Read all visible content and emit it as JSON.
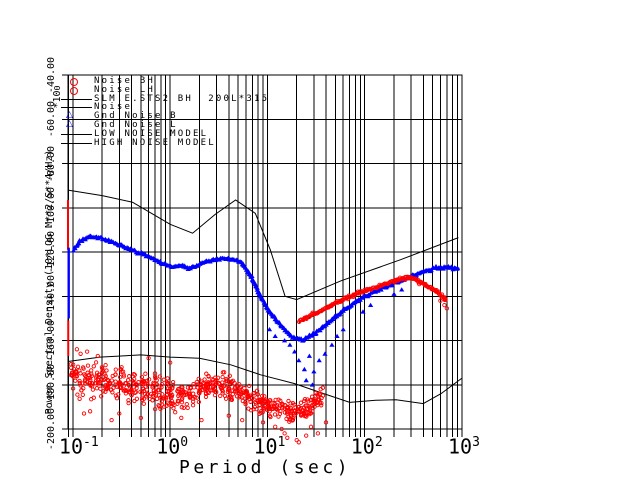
{
  "figure": {
    "background": "#ffffff",
    "foreground": "#000000",
    "red": "#ff0000",
    "blue": "#0000ff"
  },
  "axes": {
    "x": {
      "label": "Period (sec)",
      "scale": "log",
      "tick_base": "10",
      "ticks": [
        {
          "exp": "-1",
          "period": 0.1
        },
        {
          "exp": "0",
          "period": 1
        },
        {
          "exp": "1",
          "period": 10
        },
        {
          "exp": "2",
          "period": 100
        },
        {
          "exp": "3",
          "period": 1000
        }
      ]
    },
    "y": {
      "label": "Power Spectral Density (10*LOG M**2/S**4/Hz)",
      "scale_factor": "*10",
      "scale_exp": "0",
      "ticks": [
        {
          "label": "-40.00",
          "value": -40
        },
        {
          "label": "-60.00",
          "value": -60
        },
        {
          "label": "-80.00",
          "value": -80
        },
        {
          "label": "-100.00",
          "value": -100
        },
        {
          "label": "-120.00",
          "value": -120
        },
        {
          "label": "-140.00",
          "value": -140
        },
        {
          "label": "-160.00",
          "value": -160
        },
        {
          "label": "-180.00",
          "value": -180
        },
        {
          "label": "-200.00",
          "value": -200
        }
      ]
    }
  },
  "legend": {
    "items": [
      {
        "label": "Noise BH",
        "marker": "circle",
        "color": "#ff0000"
      },
      {
        "label": "Noise LH",
        "marker": "circle",
        "color": "#ff0000"
      },
      {
        "label": "SLM.E.STS2 BH  200L*315",
        "marker": "line",
        "color": "#000000"
      },
      {
        "label": "Noise",
        "marker": "line",
        "color": "#000000"
      },
      {
        "label": "Gnd Noise B",
        "marker": "triangle",
        "color": "#0000ff"
      },
      {
        "label": "Gnd Noise L",
        "marker": "triangle",
        "color": "#0000ff"
      },
      {
        "label": "LOW NOISE MODEL",
        "marker": "line",
        "color": "#000000"
      },
      {
        "label": "HIGH NOISE MODEL",
        "marker": "line",
        "color": "#000000"
      }
    ]
  },
  "chart_data": {
    "type": "line+scatter",
    "title": "",
    "xlabel": "Period (sec)",
    "ylabel": "Power Spectral Density (10*LOG M**2/S**4/Hz)",
    "xlim": [
      0.089,
      1000
    ],
    "ylim": [
      -200,
      -40
    ],
    "y_tick_step": 20,
    "grid": "vertical lines at every minor log-period tick, horizontal lines at 20 dB ticks",
    "legend_position": "top-left-inside",
    "seed": 13,
    "series": [
      {
        "name": "Noise BH",
        "color": "#ff0000",
        "marker": "circle",
        "render": "cloud",
        "centerline": [
          [
            0.095,
            -177,
            9
          ],
          [
            0.105,
            -177,
            9
          ],
          [
            0.13,
            -178,
            10
          ],
          [
            0.16,
            -177,
            11
          ],
          [
            0.2,
            -179,
            11
          ],
          [
            0.25,
            -179,
            11
          ],
          [
            0.32,
            -180,
            11
          ],
          [
            0.45,
            -181,
            10
          ],
          [
            0.62,
            -182,
            10
          ],
          [
            0.85,
            -184,
            9
          ],
          [
            1.2,
            -186,
            8
          ],
          [
            1.7,
            -184,
            9
          ],
          [
            2.4,
            -181,
            9
          ],
          [
            3.4,
            -180,
            9
          ],
          [
            4.8,
            -183,
            8
          ],
          [
            6.8,
            -186,
            8
          ],
          [
            9.5,
            -189,
            7
          ],
          [
            13,
            -191,
            7
          ],
          [
            18,
            -193,
            6
          ],
          [
            24,
            -192,
            7
          ],
          [
            30,
            -188,
            6
          ],
          [
            38,
            -184,
            5
          ]
        ],
        "outliers": [
          [
            0.25,
            -196
          ],
          [
            0.3,
            -193
          ],
          [
            0.5,
            -195
          ],
          [
            1.3,
            -195
          ],
          [
            2.1,
            -196
          ],
          [
            4,
            -194
          ],
          [
            5.5,
            -196
          ],
          [
            9,
            -197
          ],
          [
            12,
            -199
          ],
          [
            14,
            -200
          ],
          [
            15,
            -202
          ],
          [
            16,
            -204
          ],
          [
            20,
            -205
          ],
          [
            21,
            -206
          ],
          [
            25,
            -203
          ],
          [
            28,
            -199
          ],
          [
            33,
            -202
          ],
          [
            40,
            -197
          ],
          [
            0.13,
            -193
          ],
          [
            0.15,
            -192
          ],
          [
            0.7,
            -191
          ],
          [
            0.11,
            -164
          ],
          [
            0.12,
            -166
          ],
          [
            0.14,
            -165
          ],
          [
            0.18,
            -167
          ],
          [
            0.6,
            -168
          ],
          [
            1.0,
            -170
          ]
        ],
        "spikes": [
          {
            "p": 0.089,
            "from": -96.5,
            "to": -119
          },
          {
            "p": 0.0895,
            "from": -151,
            "to": -167
          }
        ]
      },
      {
        "name": "Noise LH",
        "color": "#ff0000",
        "marker": "circle",
        "render": "marker-line",
        "points": [
          [
            21,
            -151.5
          ],
          [
            25,
            -149.5
          ],
          [
            31,
            -148
          ],
          [
            38,
            -146
          ],
          [
            44,
            -144.5
          ],
          [
            53,
            -142.5
          ],
          [
            62,
            -141
          ],
          [
            75,
            -139.5
          ],
          [
            85,
            -138.5
          ],
          [
            100,
            -137.5
          ],
          [
            113,
            -136.7
          ],
          [
            128,
            -136
          ],
          [
            143,
            -135.4
          ],
          [
            160,
            -134.5
          ],
          [
            185,
            -133.6
          ],
          [
            210,
            -132.8
          ],
          [
            234,
            -132.2
          ],
          [
            260,
            -131.6
          ],
          [
            283,
            -131.3
          ],
          [
            310,
            -131.8
          ],
          [
            342,
            -132.7
          ],
          [
            380,
            -133.8
          ],
          [
            413,
            -134.5
          ],
          [
            455,
            -135.8
          ],
          [
            500,
            -136.7
          ],
          [
            550,
            -138
          ],
          [
            605,
            -139.4
          ],
          [
            650,
            -140.7
          ],
          [
            700,
            -142.1
          ]
        ],
        "extra": [
          [
            600,
            -142
          ],
          [
            660,
            -144
          ],
          [
            700,
            -145.5
          ]
        ]
      },
      {
        "name": "SLM.E.STS2 BH  200L*315",
        "color": "#000000",
        "marker": "line",
        "render": "line",
        "points": [
          [
            21,
            -152
          ],
          [
            31,
            -148.5
          ],
          [
            44,
            -145
          ],
          [
            62,
            -141.5
          ],
          [
            85,
            -139
          ],
          [
            113,
            -137.2
          ],
          [
            143,
            -135.9
          ],
          [
            165,
            -135
          ]
        ]
      },
      {
        "name": "Noise",
        "color": "#000000",
        "marker": "line",
        "render": "none",
        "points": []
      },
      {
        "name": "Gnd Noise B",
        "color": "#0000ff",
        "marker": "triangle",
        "render": "marker-line",
        "points": [
          [
            0.102,
            -119
          ],
          [
            0.118,
            -115
          ],
          [
            0.15,
            -113.2
          ],
          [
            0.19,
            -113.7
          ],
          [
            0.24,
            -115
          ],
          [
            0.32,
            -117.3
          ],
          [
            0.435,
            -119.6
          ],
          [
            0.62,
            -122.3
          ],
          [
            0.83,
            -125
          ],
          [
            1.05,
            -126.8
          ],
          [
            1.27,
            -125.9
          ],
          [
            1.53,
            -127.2
          ],
          [
            1.85,
            -126.3
          ],
          [
            2.3,
            -124.5
          ],
          [
            2.9,
            -123.2
          ],
          [
            3.95,
            -122.7
          ],
          [
            5.3,
            -124.5
          ],
          [
            6.7,
            -130.4
          ],
          [
            8.1,
            -138.1
          ]
        ],
        "spike": {
          "p": 0.0905,
          "from": -118,
          "to": -150
        }
      },
      {
        "name": "Gnd Noise L",
        "color": "#0000ff",
        "marker": "triangle",
        "render": "marker-line",
        "points": [
          [
            8.1,
            -138.1
          ],
          [
            10.2,
            -146.2
          ],
          [
            13.6,
            -153
          ],
          [
            18.1,
            -158.4
          ],
          [
            23,
            -159.8
          ],
          [
            31,
            -156.6
          ],
          [
            44,
            -151.2
          ],
          [
            63,
            -145.8
          ],
          [
            90,
            -141.2
          ],
          [
            129,
            -137.6
          ],
          [
            185,
            -134.9
          ],
          [
            265,
            -131.8
          ],
          [
            380,
            -129
          ],
          [
            545,
            -127.2
          ],
          [
            745,
            -126.8
          ],
          [
            940,
            -127.7
          ]
        ],
        "stragglers": [
          [
            19,
            -165
          ],
          [
            21,
            -169
          ],
          [
            24,
            -173
          ],
          [
            27,
            -167
          ],
          [
            30,
            -174
          ],
          [
            34,
            -169
          ],
          [
            17,
            -162
          ],
          [
            39,
            -166
          ],
          [
            46,
            -162
          ],
          [
            15,
            -160
          ],
          [
            12,
            -158
          ],
          [
            52,
            -158
          ],
          [
            60,
            -155
          ],
          [
            25,
            -178
          ],
          [
            29,
            -180
          ],
          [
            96,
            -147
          ],
          [
            115,
            -144
          ],
          [
            10.5,
            -155
          ],
          [
            200,
            -139
          ],
          [
            240,
            -137
          ]
        ]
      },
      {
        "name": "LOW NOISE MODEL",
        "color": "#000000",
        "marker": "line",
        "render": "line",
        "points": [
          [
            0.089,
            -169.5
          ],
          [
            0.19,
            -167.5
          ],
          [
            0.5,
            -166.5
          ],
          [
            1.0,
            -167.5
          ],
          [
            2.0,
            -168
          ],
          [
            4.2,
            -171
          ],
          [
            8.5,
            -175.5
          ],
          [
            19,
            -179.5
          ],
          [
            35,
            -183.5
          ],
          [
            70,
            -188
          ],
          [
            130,
            -187
          ],
          [
            210,
            -186.8
          ],
          [
            400,
            -188.5
          ],
          [
            610,
            -184
          ],
          [
            1000,
            -177
          ]
        ]
      },
      {
        "name": "HIGH NOISE MODEL",
        "color": "#000000",
        "marker": "line",
        "render": "line",
        "points": [
          [
            0.089,
            -92
          ],
          [
            0.2,
            -94.5
          ],
          [
            0.41,
            -97.5
          ],
          [
            1.0,
            -107.5
          ],
          [
            1.7,
            -111.5
          ],
          [
            2.9,
            -103
          ],
          [
            4.7,
            -96.5
          ],
          [
            7.5,
            -102.5
          ],
          [
            10.7,
            -119
          ],
          [
            15.2,
            -140
          ],
          [
            20,
            -141.5
          ],
          [
            57,
            -133
          ],
          [
            234,
            -123.5
          ],
          [
            918,
            -113.5
          ]
        ]
      }
    ]
  }
}
